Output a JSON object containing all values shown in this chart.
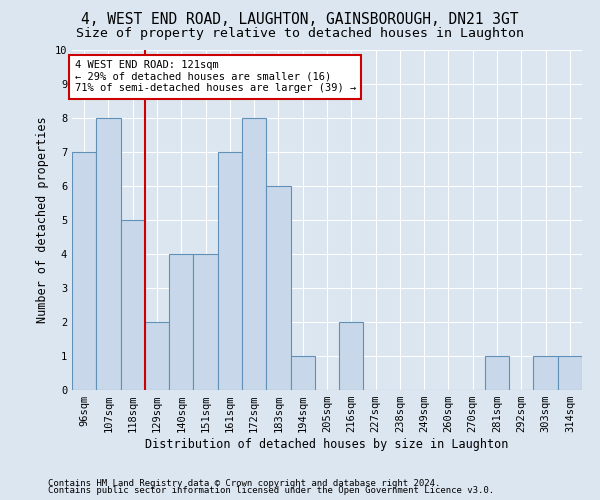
{
  "title": "4, WEST END ROAD, LAUGHTON, GAINSBOROUGH, DN21 3GT",
  "subtitle": "Size of property relative to detached houses in Laughton",
  "xlabel": "Distribution of detached houses by size in Laughton",
  "ylabel": "Number of detached properties",
  "footer1": "Contains HM Land Registry data © Crown copyright and database right 2024.",
  "footer2": "Contains public sector information licensed under the Open Government Licence v3.0.",
  "categories": [
    "96sqm",
    "107sqm",
    "118sqm",
    "129sqm",
    "140sqm",
    "151sqm",
    "161sqm",
    "172sqm",
    "183sqm",
    "194sqm",
    "205sqm",
    "216sqm",
    "227sqm",
    "238sqm",
    "249sqm",
    "260sqm",
    "270sqm",
    "281sqm",
    "292sqm",
    "303sqm",
    "314sqm"
  ],
  "values": [
    7,
    8,
    5,
    2,
    4,
    4,
    7,
    8,
    6,
    1,
    0,
    2,
    0,
    0,
    0,
    0,
    0,
    1,
    0,
    1,
    1
  ],
  "bar_color": "#c8d8ea",
  "bar_edge_color": "#6090b8",
  "bar_linewidth": 0.8,
  "highlight_index": 2,
  "highlight_line_color": "#cc0000",
  "annotation_line1": "4 WEST END ROAD: 121sqm",
  "annotation_line2": "← 29% of detached houses are smaller (16)",
  "annotation_line3": "71% of semi-detached houses are larger (39) →",
  "annotation_box_color": "#ffffff",
  "annotation_box_edge_color": "#cc0000",
  "ylim": [
    0,
    10
  ],
  "yticks": [
    0,
    1,
    2,
    3,
    4,
    5,
    6,
    7,
    8,
    9,
    10
  ],
  "background_color": "#dce6f1",
  "plot_background_color": "#dce6f1",
  "grid_color": "#ffffff",
  "title_fontsize": 10.5,
  "subtitle_fontsize": 9.5,
  "ylabel_fontsize": 8.5,
  "xlabel_fontsize": 8.5,
  "tick_fontsize": 7.5,
  "footer_fontsize": 6.5,
  "annotation_fontsize": 7.5
}
